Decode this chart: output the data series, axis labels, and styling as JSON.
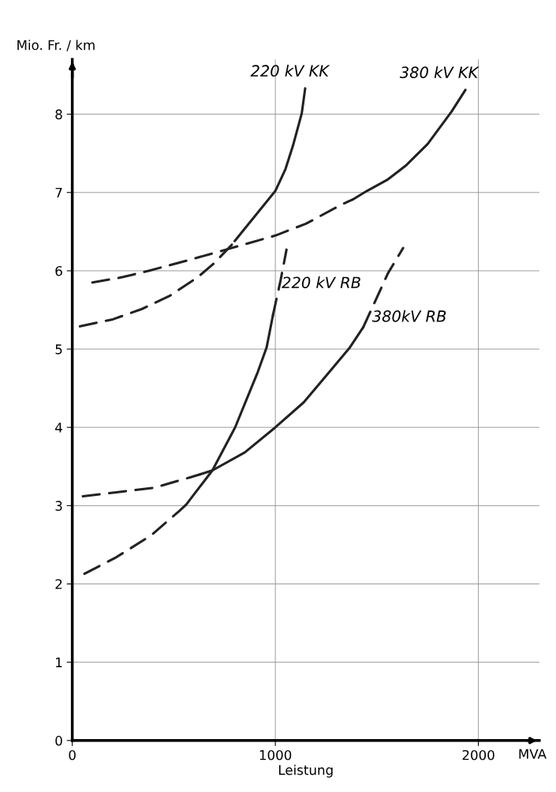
{
  "chart_data": {
    "type": "line",
    "ylabel": "Mio. Fr. / km",
    "xlabel": "Leistung",
    "xlim": [
      0,
      2300
    ],
    "ylim": [
      0,
      8.7
    ],
    "xticks": [
      0,
      1000,
      2000
    ],
    "yticks": [
      0,
      1,
      2,
      3,
      4,
      5,
      6,
      7,
      8
    ],
    "grid": true,
    "legend": false,
    "marker": "none",
    "series": [
      {
        "color": "#222222",
        "line_style": "dashed",
        "x": [
          38,
          200,
          341,
          480,
          619,
          700,
          792,
          800
        ],
        "values": [
          5.29,
          5.38,
          5.51,
          5.68,
          5.92,
          6.1,
          6.35,
          6.38
        ]
      },
      {
        "name": "220 kV KK",
        "color": "#222222",
        "line_style": "solid",
        "x": [
          800,
          900,
          1000,
          1050,
          1087,
          1130,
          1147
        ],
        "values": [
          6.38,
          6.7,
          7.02,
          7.3,
          7.6,
          8.01,
          8.33
        ]
      },
      {
        "color": "#222222",
        "line_style": "dashed",
        "x": [
          99,
          250,
          376,
          550,
          757,
          1000,
          1150,
          1329,
          1381
        ],
        "values": [
          5.85,
          5.92,
          6.0,
          6.12,
          6.27,
          6.45,
          6.6,
          6.85,
          6.91
        ]
      },
      {
        "name": "380 kV KK",
        "color": "#222222",
        "line_style": "solid",
        "x": [
          1381,
          1451,
          1550,
          1641,
          1750,
          1867,
          1936
        ],
        "values": [
          6.91,
          7.02,
          7.16,
          7.34,
          7.62,
          8.03,
          8.31
        ]
      },
      {
        "color": "#222222",
        "line_style": "dashed",
        "x": [
          60,
          216,
          388,
          526,
          560
        ],
        "values": [
          2.13,
          2.34,
          2.62,
          2.93,
          3.01
        ]
      },
      {
        "name": "220 kV RB",
        "color": "#222222",
        "line_style": "solid",
        "x": [
          560,
          690,
          802,
          914,
          957,
          988
        ],
        "values": [
          3.01,
          3.45,
          4.0,
          4.71,
          5.02,
          5.43
        ]
      },
      {
        "color": "#222222",
        "line_style": "dashed",
        "x": [
          988,
          1026,
          1055
        ],
        "values": [
          5.43,
          5.88,
          6.27
        ]
      },
      {
        "color": "#222222",
        "line_style": "dashed",
        "x": [
          52,
          216,
          405,
          578,
          629
        ],
        "values": [
          3.12,
          3.17,
          3.23,
          3.36,
          3.4
        ]
      },
      {
        "name": "380kV RB",
        "color": "#222222",
        "line_style": "solid",
        "x": [
          629,
          690,
          850,
          1000,
          1140,
          1267,
          1364,
          1433
        ],
        "values": [
          3.4,
          3.45,
          3.68,
          4.0,
          4.32,
          4.71,
          5.01,
          5.28
        ]
      },
      {
        "color": "#222222",
        "line_style": "dashed",
        "x": [
          1433,
          1555,
          1629
        ],
        "values": [
          5.28,
          5.97,
          6.29
        ]
      }
    ],
    "annotations": [
      "MVA"
    ]
  }
}
